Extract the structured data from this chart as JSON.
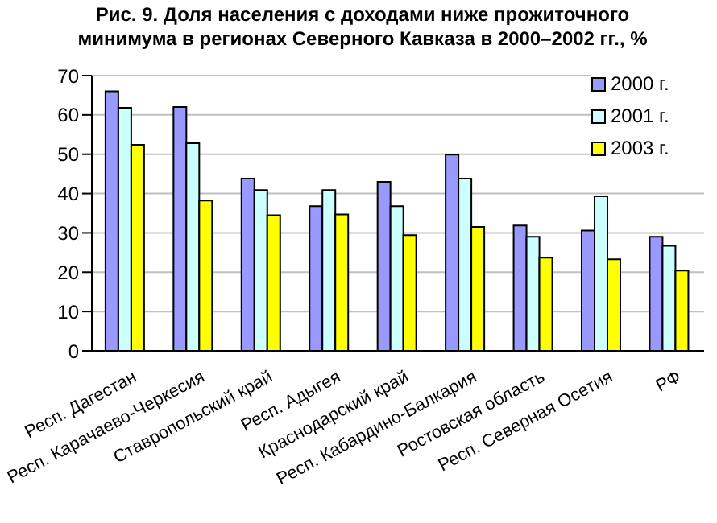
{
  "chart_data": {
    "type": "bar",
    "title": "Рис. 9. Доля населения с доходами ниже прожиточного минимума в регионах Северного Кавказа в 2000–2002 гг., %",
    "categories": [
      "Респ. Дагестан",
      "Респ. Карачаево-Черкесия",
      "Ставропольский край",
      "Респ. Адыгея",
      "Краснодарский край",
      "Респ. Кабардино-Балкария",
      "Ростовская область",
      "Респ. Северная Осетия",
      "РФ"
    ],
    "series": [
      {
        "name": "2000 г.",
        "color": "#9999ff",
        "values": [
          66,
          62,
          43.8,
          36.8,
          43,
          49.9,
          31.9,
          30.6,
          29
        ]
      },
      {
        "name": "2001 г.",
        "color": "#ccffff",
        "values": [
          61.8,
          52.8,
          40.9,
          40.9,
          36.8,
          43.8,
          29,
          39.3,
          26.7
        ]
      },
      {
        "name": "2003 г.",
        "color": "#ffff00",
        "values": [
          52.4,
          38.2,
          34.5,
          34.7,
          29.4,
          31.5,
          23.7,
          23.3,
          20.4
        ]
      }
    ],
    "ylim": [
      0,
      70
    ],
    "yticks": [
      0,
      10,
      20,
      30,
      40,
      50,
      60,
      70
    ],
    "grid": "y",
    "legend": "top right"
  }
}
